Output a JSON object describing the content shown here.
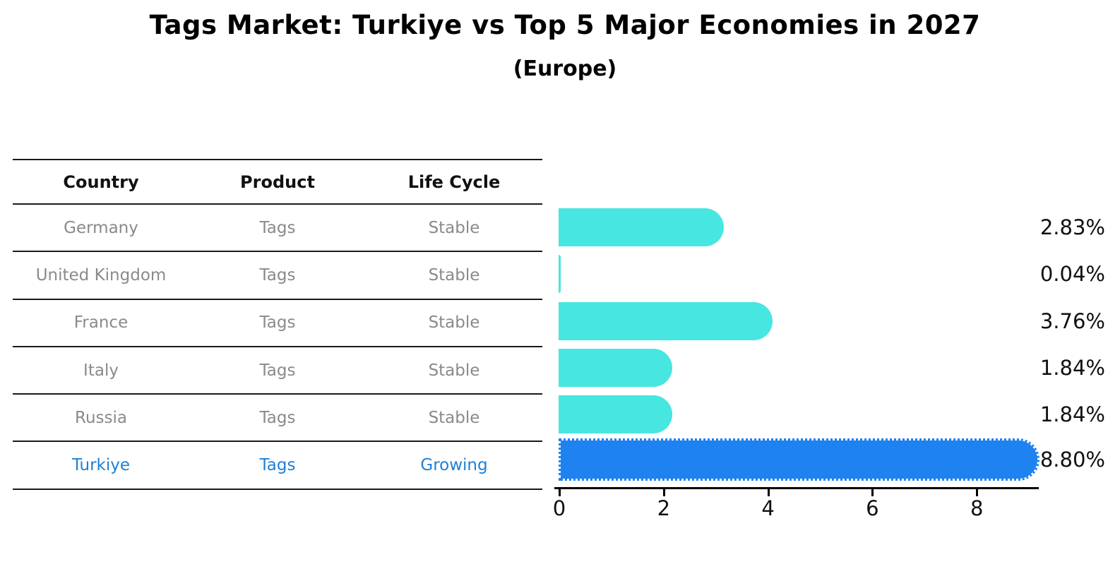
{
  "title": "Tags Market: Turkiye vs Top 5 Major Economies in 2027",
  "subtitle": "(Europe)",
  "table": {
    "headers": [
      "Country",
      "Product",
      "Life Cycle"
    ],
    "rows": [
      {
        "country": "Germany",
        "product": "Tags",
        "life_cycle": "Stable",
        "highlight": false
      },
      {
        "country": "United Kingdom",
        "product": "Tags",
        "life_cycle": "Stable",
        "highlight": false
      },
      {
        "country": "France",
        "product": "Tags",
        "life_cycle": "Stable",
        "highlight": false
      },
      {
        "country": "Italy",
        "product": "Tags",
        "life_cycle": "Stable",
        "highlight": false
      },
      {
        "country": "Russia",
        "product": "Tags",
        "life_cycle": "Stable",
        "highlight": false
      },
      {
        "country": "Turkiye",
        "product": "Tags",
        "life_cycle": "Growing",
        "highlight": true
      }
    ]
  },
  "chart_data": {
    "type": "bar",
    "orientation": "horizontal",
    "title": "Tags Market: Turkiye vs Top 5 Major Economies in 2027",
    "subtitle": "(Europe)",
    "categories": [
      "Germany",
      "United Kingdom",
      "France",
      "Italy",
      "Russia",
      "Turkiye"
    ],
    "values": [
      2.83,
      0.04,
      3.76,
      1.84,
      1.84,
      8.8
    ],
    "value_labels": [
      "2.83%",
      "0.04%",
      "3.76%",
      "1.84%",
      "1.84%",
      "8.80%"
    ],
    "x_ticks": [
      "0",
      "2",
      "4",
      "6",
      "8"
    ],
    "x_tick_values": [
      0,
      2,
      4,
      6,
      8
    ],
    "xlim": [
      0,
      9.3
    ],
    "grid": false,
    "legend": false,
    "bar_color": "#47e6e0",
    "highlight_color": "#1e82f0",
    "highlight_text_color": "#1e7fd8",
    "highlight_index": 5
  }
}
